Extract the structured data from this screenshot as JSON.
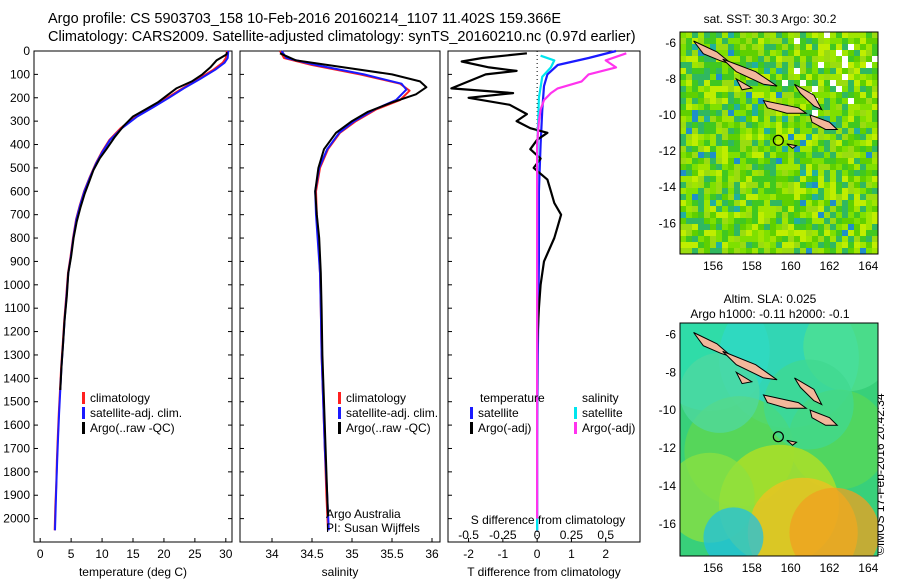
{
  "header": {
    "line1": "Argo profile: CS 5903703_158 10-Feb-2016 20160214_1107 11.402S 159.366E",
    "line2": "Climatology: CARS2009. Satellite-adjusted climatology: synTS_20160210.nc (0.97d earlier)"
  },
  "stamp": "©IMOS 17-Feb-2016 20:42:34",
  "colors": {
    "climatology": "#ff2020",
    "satellite": "#1a1aff",
    "argo": "#000000",
    "salinity_sat": "#00e5ee",
    "salinity_argo": "#ff33ee",
    "land": "#f2b79b"
  },
  "chart_data": [
    {
      "type": "line",
      "id": "temperature",
      "xlabel": "temperature (deg C)",
      "ylim": [
        2100,
        0
      ],
      "xlim": [
        -1,
        31
      ],
      "xticks": [
        0,
        5,
        10,
        15,
        20,
        25,
        30
      ],
      "yticks": [
        0,
        100,
        200,
        300,
        400,
        500,
        600,
        700,
        800,
        900,
        1000,
        1100,
        1200,
        1300,
        1400,
        1500,
        1600,
        1700,
        1800,
        1900,
        2000
      ],
      "legend": [
        "climatology",
        "satellite-adj. clim.",
        "Argo(..raw -QC)"
      ],
      "series": [
        {
          "name": "climatology",
          "color": "#ff2020",
          "points": [
            [
              30.2,
              0
            ],
            [
              30.0,
              30
            ],
            [
              29.5,
              50
            ],
            [
              28.0,
              80
            ],
            [
              25.5,
              120
            ],
            [
              23.0,
              160
            ],
            [
              20.5,
              200
            ],
            [
              18.0,
              240
            ],
            [
              15.5,
              280
            ],
            [
              13.0,
              330
            ],
            [
              11.2,
              380
            ],
            [
              10.0,
              430
            ],
            [
              9.0,
              480
            ],
            [
              8.0,
              540
            ],
            [
              7.1,
              600
            ],
            [
              6.4,
              660
            ],
            [
              5.8,
              720
            ],
            [
              5.3,
              800
            ],
            [
              4.9,
              880
            ],
            [
              4.5,
              950
            ],
            [
              4.2,
              1050
            ],
            [
              3.9,
              1150
            ],
            [
              3.65,
              1250
            ],
            [
              3.4,
              1350
            ],
            [
              3.2,
              1450
            ],
            [
              3.0,
              1550
            ],
            [
              2.85,
              1650
            ],
            [
              2.7,
              1750
            ],
            [
              2.6,
              1850
            ],
            [
              2.45,
              1950
            ],
            [
              2.35,
              2050
            ]
          ]
        },
        {
          "name": "satellite-adj. clim.",
          "color": "#1a1aff",
          "points": [
            [
              30.4,
              0
            ],
            [
              30.3,
              30
            ],
            [
              29.8,
              50
            ],
            [
              28.3,
              80
            ],
            [
              25.8,
              120
            ],
            [
              23.2,
              160
            ],
            [
              20.8,
              200
            ],
            [
              18.3,
              240
            ],
            [
              15.7,
              280
            ],
            [
              13.2,
              330
            ],
            [
              11.3,
              380
            ],
            [
              10.1,
              430
            ],
            [
              9.05,
              480
            ],
            [
              8.05,
              540
            ],
            [
              7.15,
              600
            ],
            [
              6.45,
              660
            ],
            [
              5.85,
              720
            ],
            [
              5.35,
              800
            ],
            [
              4.95,
              880
            ],
            [
              4.55,
              950
            ],
            [
              4.25,
              1050
            ],
            [
              3.95,
              1150
            ],
            [
              3.7,
              1250
            ],
            [
              3.45,
              1350
            ],
            [
              3.25,
              1450
            ],
            [
              3.05,
              1550
            ],
            [
              2.9,
              1650
            ],
            [
              2.75,
              1750
            ],
            [
              2.62,
              1850
            ],
            [
              2.5,
              1950
            ],
            [
              2.4,
              2050
            ]
          ]
        },
        {
          "name": "Argo(..raw -QC)",
          "color": "#000000",
          "points": [
            [
              30.2,
              5
            ],
            [
              30.1,
              15
            ],
            [
              28.5,
              40
            ],
            [
              27.5,
              70
            ],
            [
              26.2,
              100
            ],
            [
              24.5,
              130
            ],
            [
              22.0,
              160
            ],
            [
              20.5,
              190
            ],
            [
              19.0,
              220
            ],
            [
              17.0,
              250
            ],
            [
              15.0,
              280
            ],
            [
              13.5,
              320
            ],
            [
              12.0,
              370
            ],
            [
              10.7,
              420
            ],
            [
              9.6,
              460
            ],
            [
              8.6,
              510
            ],
            [
              7.9,
              560
            ],
            [
              7.2,
              610
            ],
            [
              6.5,
              670
            ],
            [
              5.9,
              730
            ],
            [
              5.4,
              800
            ],
            [
              5.0,
              880
            ],
            [
              4.55,
              950
            ],
            [
              4.3,
              1050
            ],
            [
              3.95,
              1150
            ],
            [
              3.7,
              1250
            ],
            [
              3.45,
              1350
            ],
            [
              3.25,
              1450
            ]
          ]
        }
      ]
    },
    {
      "type": "line",
      "id": "salinity",
      "xlabel": "salinity",
      "ylim": [
        2100,
        0
      ],
      "xlim": [
        33.6,
        36.1
      ],
      "xticks": [
        34,
        34.5,
        35,
        35.5,
        36
      ],
      "xtick_labels": [
        "34",
        "34.5",
        "35",
        "35.5",
        "36"
      ],
      "legend": [
        "climatology",
        "satellite-adj. clim.",
        "Argo(..raw -QC)"
      ],
      "annotation": [
        "Argo Australia",
        "PI: Susan Wijffels"
      ],
      "series": [
        {
          "name": "climatology",
          "color": "#ff2020",
          "points": [
            [
              34.1,
              0
            ],
            [
              34.15,
              30
            ],
            [
              34.5,
              60
            ],
            [
              35.1,
              100
            ],
            [
              35.6,
              140
            ],
            [
              35.72,
              170
            ],
            [
              35.6,
              210
            ],
            [
              35.3,
              250
            ],
            [
              35.05,
              300
            ],
            [
              34.85,
              350
            ],
            [
              34.7,
              420
            ],
            [
              34.6,
              500
            ],
            [
              34.55,
              600
            ],
            [
              34.56,
              700
            ],
            [
              34.58,
              800
            ],
            [
              34.6,
              950
            ],
            [
              34.61,
              1100
            ],
            [
              34.62,
              1300
            ],
            [
              34.64,
              1500
            ],
            [
              34.66,
              1700
            ],
            [
              34.68,
              1900
            ],
            [
              34.7,
              2050
            ]
          ]
        },
        {
          "name": "satellite-adj. clim.",
          "color": "#1a1aff",
          "points": [
            [
              34.12,
              0
            ],
            [
              34.18,
              30
            ],
            [
              34.55,
              60
            ],
            [
              35.15,
              100
            ],
            [
              35.62,
              140
            ],
            [
              35.68,
              165
            ],
            [
              35.55,
              210
            ],
            [
              35.28,
              250
            ],
            [
              35.03,
              300
            ],
            [
              34.84,
              350
            ],
            [
              34.69,
              420
            ],
            [
              34.59,
              500
            ],
            [
              34.54,
              600
            ],
            [
              34.55,
              700
            ],
            [
              34.57,
              800
            ],
            [
              34.6,
              950
            ],
            [
              34.61,
              1100
            ],
            [
              34.62,
              1300
            ],
            [
              34.64,
              1500
            ],
            [
              34.66,
              1700
            ],
            [
              34.69,
              1900
            ],
            [
              34.71,
              2050
            ]
          ]
        },
        {
          "name": "Argo(..raw -QC)",
          "color": "#000000",
          "points": [
            [
              34.1,
              10
            ],
            [
              34.3,
              40
            ],
            [
              34.9,
              70
            ],
            [
              35.5,
              100
            ],
            [
              35.85,
              130
            ],
            [
              35.93,
              155
            ],
            [
              35.8,
              185
            ],
            [
              35.5,
              220
            ],
            [
              35.2,
              260
            ],
            [
              35.0,
              300
            ],
            [
              34.8,
              350
            ],
            [
              34.65,
              420
            ],
            [
              34.58,
              500
            ],
            [
              34.54,
              600
            ],
            [
              34.56,
              700
            ],
            [
              34.59,
              800
            ],
            [
              34.61,
              950
            ],
            [
              34.62,
              1100
            ],
            [
              34.63,
              1300
            ],
            [
              34.65,
              1500
            ],
            [
              34.67,
              1700
            ],
            [
              34.69,
              1900
            ],
            [
              34.7,
              1990
            ]
          ]
        }
      ]
    },
    {
      "type": "line",
      "id": "differences",
      "xlabel": "T difference from climatology",
      "top_xlabel": "S difference from climatology",
      "ylim": [
        2100,
        0
      ],
      "xlim": [
        -2.6,
        3.0
      ],
      "xticks": [
        -2,
        -1,
        0,
        1,
        2
      ],
      "s_xticks": [
        -0.5,
        -0.25,
        0,
        0.25,
        0.5
      ],
      "s_xtick_labels": [
        "-0.5",
        "-0.25",
        "0",
        "0.25",
        "0.5"
      ],
      "legend_left": [
        "temperature",
        "satellite",
        "Argo(-adj)"
      ],
      "legend_right": [
        "salinity",
        "satellite",
        "Argo(-adj)"
      ],
      "series": [
        {
          "name": "temperature satellite",
          "color": "#1a1aff",
          "points": [
            [
              2.3,
              0
            ],
            [
              1.5,
              30
            ],
            [
              0.6,
              60
            ],
            [
              0.3,
              100
            ],
            [
              0.2,
              150
            ],
            [
              0.15,
              250
            ],
            [
              0.1,
              400
            ],
            [
              0.05,
              600
            ],
            [
              0.05,
              900
            ],
            [
              0.02,
              1300
            ],
            [
              0.0,
              1700
            ],
            [
              0.0,
              2050
            ]
          ]
        },
        {
          "name": "temperature Argo(-adj)",
          "color": "#000000",
          "points": [
            [
              -0.3,
              10
            ],
            [
              -1.6,
              30
            ],
            [
              -2.2,
              45
            ],
            [
              -1.4,
              70
            ],
            [
              -0.6,
              85
            ],
            [
              -1.5,
              100
            ],
            [
              -2.5,
              160
            ],
            [
              -0.7,
              180
            ],
            [
              -2.0,
              200
            ],
            [
              -0.8,
              230
            ],
            [
              -0.3,
              270
            ],
            [
              -0.6,
              300
            ],
            [
              -0.2,
              330
            ],
            [
              0.3,
              350
            ],
            [
              0.0,
              380
            ],
            [
              -0.2,
              420
            ],
            [
              0.1,
              460
            ],
            [
              -0.1,
              500
            ],
            [
              0.3,
              550
            ],
            [
              0.4,
              600
            ],
            [
              0.5,
              650
            ],
            [
              0.7,
              700
            ],
            [
              0.6,
              750
            ],
            [
              0.5,
              800
            ],
            [
              0.2,
              900
            ],
            [
              0.1,
              1000
            ],
            [
              0.05,
              1100
            ],
            [
              0.02,
              1200
            ],
            [
              0.0,
              1300
            ],
            [
              0.0,
              1450
            ]
          ]
        },
        {
          "name": "salinity satellite",
          "color": "#00e5ee",
          "points": [
            [
              0.1,
              20
            ],
            [
              0.5,
              40
            ],
            [
              0.4,
              70
            ],
            [
              0.15,
              110
            ],
            [
              0.05,
              200
            ],
            [
              0.02,
              350
            ],
            [
              0.0,
              600
            ],
            [
              0.0,
              1000
            ],
            [
              0.0,
              1500
            ],
            [
              0.0,
              2050
            ]
          ]
        },
        {
          "name": "salinity Argo(-adj)",
          "color": "#ff33ee",
          "points": [
            [
              2.6,
              10
            ],
            [
              2.0,
              40
            ],
            [
              2.3,
              70
            ],
            [
              1.5,
              100
            ],
            [
              1.3,
              130
            ],
            [
              0.6,
              160
            ],
            [
              0.4,
              180
            ],
            [
              0.2,
              210
            ],
            [
              0.1,
              250
            ],
            [
              0.05,
              300
            ],
            [
              0.0,
              400
            ],
            [
              0.0,
              600
            ],
            [
              0.0,
              1000
            ],
            [
              0.0,
              1500
            ],
            [
              0.0,
              2000
            ]
          ]
        }
      ]
    },
    {
      "type": "heatmap",
      "id": "sst_map",
      "title": "sat. SST: 30.3 Argo: 30.2",
      "xlim": [
        154.3,
        164.5
      ],
      "ylim": [
        -17.7,
        -5.4
      ],
      "xticks": [
        156,
        158,
        160,
        162,
        164
      ],
      "yticks": [
        -6,
        -8,
        -10,
        -12,
        -14,
        -16
      ],
      "marker": [
        159.366,
        -11.402
      ]
    },
    {
      "type": "heatmap",
      "id": "sla_map",
      "title": "Altim. SLA: 0.025",
      "subtitle": "Argo h1000: -0.11 h2000: -0.1",
      "xlim": [
        154.3,
        164.5
      ],
      "ylim": [
        -17.7,
        -5.4
      ],
      "xticks": [
        156,
        158,
        160,
        162,
        164
      ],
      "yticks": [
        -6,
        -8,
        -10,
        -12,
        -14,
        -16
      ],
      "marker": [
        159.366,
        -11.402
      ]
    }
  ]
}
